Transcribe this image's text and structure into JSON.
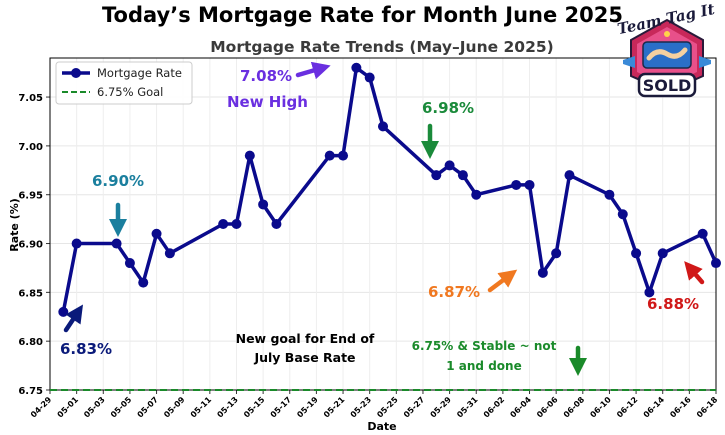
{
  "header": {
    "title": "Today’s Mortgage Rate for Month June 2025"
  },
  "logo": {
    "top_text": "Team Tag It",
    "badge_text": "SOLD"
  },
  "chart_data": {
    "type": "line",
    "title": "Mortgage Rate Trends (May–June 2025)",
    "xlabel": "Date",
    "ylabel": "Rate (%)",
    "xlim": [
      "04-29",
      "06-18"
    ],
    "ylim": [
      6.75,
      7.09
    ],
    "yticks": [
      6.75,
      6.8,
      6.85,
      6.9,
      6.95,
      7.0,
      7.05
    ],
    "xticks": [
      "04-29",
      "05-01",
      "05-03",
      "05-05",
      "05-07",
      "05-09",
      "05-11",
      "05-13",
      "05-15",
      "05-17",
      "05-19",
      "05-21",
      "05-23",
      "05-25",
      "05-27",
      "05-29",
      "05-31",
      "06-02",
      "06-04",
      "06-06",
      "06-08",
      "06-10",
      "06-12",
      "06-14",
      "06-16",
      "06-18"
    ],
    "grid": true,
    "legend_position": "top-left",
    "series": [
      {
        "name": "Mortgage Rate",
        "color": "#0a0a8c",
        "points": [
          {
            "x": "04-30",
            "y": 6.83
          },
          {
            "x": "05-01",
            "y": 6.9
          },
          {
            "x": "05-04",
            "y": 6.9
          },
          {
            "x": "05-05",
            "y": 6.88
          },
          {
            "x": "05-06",
            "y": 6.86
          },
          {
            "x": "05-07",
            "y": 6.91
          },
          {
            "x": "05-08",
            "y": 6.89
          },
          {
            "x": "05-12",
            "y": 6.92
          },
          {
            "x": "05-13",
            "y": 6.92
          },
          {
            "x": "05-14",
            "y": 6.99
          },
          {
            "x": "05-15",
            "y": 6.94
          },
          {
            "x": "05-16",
            "y": 6.92
          },
          {
            "x": "05-20",
            "y": 6.99
          },
          {
            "x": "05-21",
            "y": 6.99
          },
          {
            "x": "05-22",
            "y": 7.08
          },
          {
            "x": "05-23",
            "y": 7.07
          },
          {
            "x": "05-24",
            "y": 7.02
          },
          {
            "x": "05-28",
            "y": 6.97
          },
          {
            "x": "05-29",
            "y": 6.98
          },
          {
            "x": "05-30",
            "y": 6.97
          },
          {
            "x": "05-31",
            "y": 6.95
          },
          {
            "x": "06-03",
            "y": 6.96
          },
          {
            "x": "06-04",
            "y": 6.96
          },
          {
            "x": "06-05",
            "y": 6.87
          },
          {
            "x": "06-06",
            "y": 6.89
          },
          {
            "x": "06-07",
            "y": 6.97
          },
          {
            "x": "06-10",
            "y": 6.95
          },
          {
            "x": "06-11",
            "y": 6.93
          },
          {
            "x": "06-12",
            "y": 6.89
          },
          {
            "x": "06-13",
            "y": 6.85
          },
          {
            "x": "06-14",
            "y": 6.89
          },
          {
            "x": "06-17",
            "y": 6.91
          },
          {
            "x": "06-18",
            "y": 6.88
          }
        ]
      },
      {
        "name": "6.75% Goal",
        "color": "#1a8a2a",
        "style": "dashed",
        "y": 6.75
      }
    ],
    "annotations": [
      {
        "text": "6.83%",
        "color": "#0a1a7a",
        "arrow": "up-right",
        "at": {
          "x": "04-30",
          "y": 6.83
        }
      },
      {
        "text": "6.90%",
        "color": "#1b7f9e",
        "arrow": "down",
        "at": {
          "x": "05-04",
          "y": 6.9
        }
      },
      {
        "text": "7.08%",
        "color": "#6a2fe0",
        "arrow": "right",
        "at": {
          "x": "05-22",
          "y": 7.08
        }
      },
      {
        "text": "New High",
        "color": "#6a2fe0"
      },
      {
        "text": "6.98%",
        "color": "#1a8a3a",
        "arrow": "down",
        "at": {
          "x": "05-29",
          "y": 6.98
        }
      },
      {
        "text": "6.87%",
        "color": "#f07820",
        "arrow": "up-right",
        "at": {
          "x": "06-05",
          "y": 6.87
        }
      },
      {
        "text": "6.88%",
        "color": "#d01818",
        "arrow": "up-left",
        "at": {
          "x": "06-18",
          "y": 6.88
        }
      },
      {
        "text": "New goal for End of July Base Rate",
        "color": "#000000"
      },
      {
        "text": "6.75% & Stable ~ not 1 and done",
        "color": "#1a8a2a",
        "arrow": "down"
      }
    ]
  }
}
